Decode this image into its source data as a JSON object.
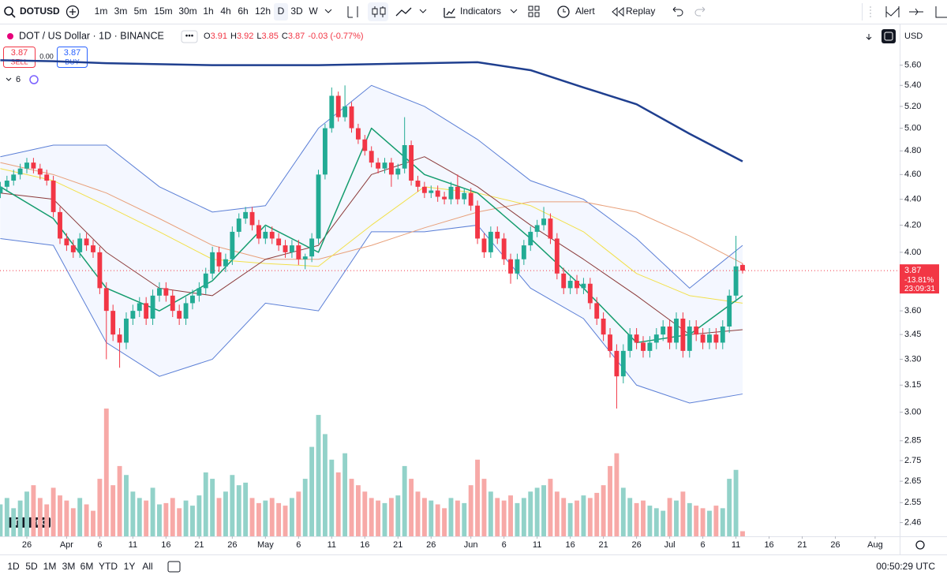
{
  "toolbar": {
    "symbol": "DOTUSD",
    "intervals": [
      "1m",
      "3m",
      "5m",
      "15m",
      "30m",
      "1h",
      "4h",
      "6h",
      "12h",
      "D",
      "3D",
      "W"
    ],
    "active_interval": "D",
    "indicators": "Indicators",
    "alert": "Alert",
    "replay": "Replay"
  },
  "legend": {
    "title": "DOT / US Dollar · 1D · BINANCE",
    "ohlc": [
      {
        "key": "O",
        "value": "3.91"
      },
      {
        "key": "H",
        "value": "3.92"
      },
      {
        "key": "L",
        "value": "3.85"
      },
      {
        "key": "C",
        "value": "3.87"
      }
    ],
    "change": "-0.03 (-0.77%)"
  },
  "trade": {
    "sell_price": "3.87",
    "sell": "SELL",
    "spread": "0.00",
    "buy_price": "3.87",
    "buy": "BUY"
  },
  "indicator_count": "6",
  "currency": "USD",
  "price_label": {
    "price": "3.87",
    "change": "-13.81%",
    "countdown": "23:09:31"
  },
  "logo": "PRO",
  "bottom": {
    "ranges": [
      "1D",
      "5D",
      "1M",
      "3M",
      "6M",
      "YTD",
      "1Y",
      "All"
    ],
    "clock": "00:50:29 UTC"
  },
  "chart_data": {
    "type": "candlestick",
    "log_scale": true,
    "ylim": [
      2.4,
      6.0
    ],
    "yticks": [
      {
        "value": 5.6,
        "label": "5.60"
      },
      {
        "value": 5.4,
        "label": "5.40"
      },
      {
        "value": 5.2,
        "label": "5.20"
      },
      {
        "value": 5,
        "label": "5.00"
      },
      {
        "value": 4.8,
        "label": "4.80"
      },
      {
        "value": 4.6,
        "label": "4.60"
      },
      {
        "value": 4.4,
        "label": "4.40"
      },
      {
        "value": 4.2,
        "label": "4.20"
      },
      {
        "value": 4,
        "label": "4.00"
      },
      {
        "value": 3.6,
        "label": "3.60"
      },
      3.45,
      {
        "value": 3.3,
        "label": "3.30"
      },
      3.15,
      {
        "value": 3,
        "label": "3.00"
      },
      2.85,
      2.75,
      2.65,
      2.55,
      2.46
    ],
    "xlim": [
      -0.05,
      135.7
    ],
    "xticks": [
      {
        "value": 4,
        "label": "26"
      },
      {
        "value": 10,
        "label": "Apr"
      },
      {
        "value": 15,
        "label": "6"
      },
      {
        "value": 20,
        "label": "11"
      },
      {
        "value": 25,
        "label": "16"
      },
      {
        "value": 30,
        "label": "21"
      },
      {
        "value": 35,
        "label": "26"
      },
      {
        "value": 40,
        "label": "May"
      },
      {
        "value": 45,
        "label": "6"
      },
      {
        "value": 50,
        "label": "11"
      },
      {
        "value": 55,
        "label": "16"
      },
      {
        "value": 60,
        "label": "21"
      },
      {
        "value": 65,
        "label": "26"
      },
      {
        "value": 71,
        "label": "Jun"
      },
      {
        "value": 76,
        "label": "6"
      },
      {
        "value": 81,
        "label": "11"
      },
      {
        "value": 86,
        "label": "16"
      },
      {
        "value": 91,
        "label": "21"
      },
      {
        "value": 96,
        "label": "26"
      },
      {
        "value": 101,
        "label": "Jul"
      },
      {
        "value": 106,
        "label": "6"
      },
      {
        "value": 111,
        "label": "11"
      },
      {
        "value": 116,
        "label": "16"
      },
      {
        "value": 121,
        "label": "21"
      },
      {
        "value": 126,
        "label": "26"
      },
      {
        "value": 132,
        "label": "Aug"
      }
    ],
    "up_color": "#22ab94",
    "down_color": "#f23645",
    "volume_up_color": "#92d2c9",
    "volume_down_color": "#f7a9a7",
    "candles": [
      [
        4.45,
        4.54,
        4.41,
        4.5
      ],
      [
        4.5,
        4.59,
        4.46,
        4.55
      ],
      [
        4.55,
        4.64,
        4.51,
        4.6
      ],
      [
        4.6,
        4.69,
        4.56,
        4.65
      ],
      [
        4.65,
        4.74,
        4.61,
        4.7
      ],
      [
        4.7,
        4.74,
        4.61,
        4.65
      ],
      [
        4.65,
        4.69,
        4.56,
        4.6
      ],
      [
        4.6,
        4.64,
        4.51,
        4.55
      ],
      [
        4.55,
        4.59,
        4.26,
        4.3
      ],
      [
        4.3,
        4.34,
        4.06,
        4.1
      ],
      [
        4.1,
        4.14,
        4.01,
        4.05
      ],
      [
        4.05,
        4.09,
        3.96,
        4.0
      ],
      [
        4.0,
        4.14,
        3.96,
        4.1
      ],
      [
        4.1,
        4.14,
        4.01,
        4.05
      ],
      [
        4.05,
        4.09,
        3.96,
        4.0
      ],
      [
        4.0,
        4.04,
        3.71,
        3.75
      ],
      [
        3.75,
        3.79,
        3.3,
        3.6
      ],
      [
        3.6,
        3.64,
        3.41,
        3.45
      ],
      [
        3.45,
        3.49,
        3.25,
        3.4
      ],
      [
        3.4,
        3.59,
        3.36,
        3.55
      ],
      [
        3.55,
        3.64,
        3.51,
        3.6
      ],
      [
        3.6,
        3.69,
        3.56,
        3.65
      ],
      [
        3.65,
        3.69,
        3.51,
        3.55
      ],
      [
        3.55,
        3.74,
        3.51,
        3.7
      ],
      [
        3.7,
        3.79,
        3.66,
        3.75
      ],
      [
        3.75,
        3.79,
        3.66,
        3.7
      ],
      [
        3.7,
        3.74,
        3.56,
        3.6
      ],
      [
        3.6,
        3.64,
        3.51,
        3.55
      ],
      [
        3.55,
        3.69,
        3.51,
        3.65
      ],
      [
        3.65,
        3.74,
        3.61,
        3.7
      ],
      [
        3.7,
        3.79,
        3.66,
        3.75
      ],
      [
        3.75,
        3.89,
        3.71,
        3.85
      ],
      [
        3.85,
        4.04,
        3.81,
        4.0
      ],
      [
        4.0,
        4.04,
        3.86,
        3.9
      ],
      [
        3.9,
        3.99,
        3.86,
        3.95
      ],
      [
        3.95,
        4.19,
        3.91,
        4.15
      ],
      [
        4.15,
        4.29,
        4.11,
        4.25
      ],
      [
        4.25,
        4.34,
        4.21,
        4.3
      ],
      [
        4.3,
        4.34,
        4.16,
        4.2
      ],
      [
        4.2,
        4.24,
        4.06,
        4.1
      ],
      [
        4.1,
        4.19,
        4.06,
        4.15
      ],
      [
        4.15,
        4.19,
        4.06,
        4.1
      ],
      [
        4.1,
        4.14,
        4.01,
        4.05
      ],
      [
        4.05,
        4.09,
        3.96,
        4.0
      ],
      [
        4.0,
        4.09,
        3.96,
        4.05
      ],
      [
        4.05,
        4.09,
        3.91,
        3.95
      ],
      [
        3.95,
        3.99,
        3.88,
        3.97
      ],
      [
        3.97,
        4.14,
        3.93,
        4.1
      ],
      [
        4.1,
        4.64,
        4.06,
        4.6
      ],
      [
        4.6,
        5.04,
        4.56,
        5.0
      ],
      [
        5.0,
        5.38,
        4.96,
        5.3
      ],
      [
        5.3,
        5.34,
        5.06,
        5.1
      ],
      [
        5.1,
        5.4,
        5.06,
        5.2
      ],
      [
        5.2,
        5.24,
        4.96,
        5.0
      ],
      [
        5.0,
        5.04,
        4.86,
        4.9
      ],
      [
        4.9,
        4.94,
        4.76,
        4.8
      ],
      [
        4.8,
        4.84,
        4.66,
        4.7
      ],
      [
        4.7,
        4.74,
        4.61,
        4.65
      ],
      [
        4.65,
        4.74,
        4.61,
        4.7
      ],
      [
        4.7,
        4.74,
        4.5,
        4.6
      ],
      [
        4.6,
        4.69,
        4.56,
        4.65
      ],
      [
        4.65,
        5.1,
        4.61,
        4.85
      ],
      [
        4.85,
        4.89,
        4.51,
        4.55
      ],
      [
        4.55,
        4.59,
        4.46,
        4.5
      ],
      [
        4.5,
        4.54,
        4.41,
        4.45
      ],
      [
        4.45,
        4.51,
        4.41,
        4.47
      ],
      [
        4.47,
        4.51,
        4.38,
        4.42
      ],
      [
        4.42,
        4.46,
        4.36,
        4.4
      ],
      [
        4.4,
        4.54,
        4.36,
        4.5
      ],
      [
        4.5,
        4.6,
        4.36,
        4.4
      ],
      [
        4.4,
        4.49,
        4.36,
        4.45
      ],
      [
        4.45,
        4.49,
        4.31,
        4.35
      ],
      [
        4.35,
        4.39,
        4.06,
        4.1
      ],
      [
        4.1,
        4.14,
        3.96,
        4.0
      ],
      [
        4.0,
        4.19,
        3.96,
        4.15
      ],
      [
        4.15,
        4.19,
        4.06,
        4.1
      ],
      [
        4.1,
        4.14,
        3.91,
        3.95
      ],
      [
        3.95,
        3.99,
        3.78,
        3.85
      ],
      [
        3.85,
        3.99,
        3.81,
        3.95
      ],
      [
        3.95,
        4.09,
        3.91,
        4.05
      ],
      [
        4.05,
        4.19,
        4.01,
        4.15
      ],
      [
        4.15,
        4.24,
        4.11,
        4.2
      ],
      [
        4.2,
        4.34,
        4.16,
        4.25
      ],
      [
        4.25,
        4.29,
        4.06,
        4.1
      ],
      [
        4.1,
        4.14,
        3.81,
        3.85
      ],
      [
        3.85,
        3.89,
        3.71,
        3.75
      ],
      [
        3.75,
        3.84,
        3.71,
        3.8
      ],
      [
        3.8,
        3.84,
        3.71,
        3.75
      ],
      [
        3.75,
        3.82,
        3.71,
        3.78
      ],
      [
        3.78,
        3.82,
        3.61,
        3.65
      ],
      [
        3.65,
        3.69,
        3.51,
        3.55
      ],
      [
        3.55,
        3.59,
        3.41,
        3.45
      ],
      [
        3.45,
        3.49,
        3.31,
        3.35
      ],
      [
        3.35,
        3.39,
        3.02,
        3.2
      ],
      [
        3.2,
        3.39,
        3.16,
        3.35
      ],
      [
        3.35,
        3.49,
        3.31,
        3.45
      ],
      [
        3.45,
        3.49,
        3.36,
        3.4
      ],
      [
        3.4,
        3.44,
        3.31,
        3.35
      ],
      [
        3.35,
        3.44,
        3.31,
        3.4
      ],
      [
        3.4,
        3.49,
        3.36,
        3.45
      ],
      [
        3.45,
        3.54,
        3.41,
        3.5
      ],
      [
        3.5,
        3.54,
        3.36,
        3.4
      ],
      [
        3.4,
        3.59,
        3.36,
        3.55
      ],
      [
        3.55,
        3.59,
        3.31,
        3.35
      ],
      [
        3.35,
        3.54,
        3.31,
        3.5
      ],
      [
        3.5,
        3.54,
        3.41,
        3.45
      ],
      [
        3.45,
        3.49,
        3.36,
        3.4
      ],
      [
        3.4,
        3.49,
        3.36,
        3.45
      ],
      [
        3.45,
        3.49,
        3.36,
        3.4
      ],
      [
        3.4,
        3.54,
        3.36,
        3.5
      ],
      [
        3.5,
        3.74,
        3.46,
        3.7
      ],
      [
        3.7,
        4.12,
        3.66,
        3.9
      ],
      [
        3.91,
        3.92,
        3.85,
        3.87
      ]
    ],
    "volume": [
      25,
      30,
      22,
      28,
      35,
      40,
      30,
      25,
      38,
      32,
      28,
      22,
      30,
      25,
      20,
      45,
      100,
      40,
      55,
      48,
      35,
      30,
      28,
      38,
      25,
      26,
      30,
      22,
      28,
      24,
      32,
      50,
      45,
      30,
      35,
      48,
      40,
      42,
      30,
      26,
      28,
      30,
      26,
      24,
      30,
      35,
      45,
      70,
      95,
      80,
      60,
      50,
      65,
      45,
      40,
      35,
      30,
      28,
      26,
      30,
      32,
      55,
      45,
      35,
      30,
      28,
      25,
      22,
      30,
      28,
      26,
      40,
      60,
      45,
      35,
      30,
      28,
      32,
      26,
      30,
      35,
      38,
      40,
      45,
      35,
      30,
      26,
      28,
      32,
      30,
      34,
      40,
      55,
      65,
      38,
      30,
      26,
      28,
      24,
      22,
      20,
      30,
      28,
      35,
      26,
      24,
      22,
      20,
      24,
      22,
      45,
      52,
      4
    ],
    "volume_lim": [
      0,
      100
    ],
    "band": {
      "color": "#5b7fd6",
      "x": [
        0,
        8,
        16,
        24,
        32,
        40,
        48,
        56,
        64,
        72,
        80,
        88,
        96,
        104,
        112
      ],
      "upper": [
        4.75,
        4.85,
        4.85,
        4.5,
        4.3,
        4.35,
        5.0,
        5.4,
        5.2,
        4.9,
        4.55,
        4.4,
        4.1,
        3.75,
        4.05
      ],
      "lower": [
        4.1,
        4.05,
        3.4,
        3.2,
        3.3,
        3.65,
        3.6,
        4.15,
        4.15,
        4.2,
        3.75,
        3.55,
        3.15,
        3.05,
        3.1
      ]
    },
    "lines": [
      {
        "color": "#1f3f8f",
        "width": 2.5,
        "x": [
          0,
          8,
          16,
          24,
          32,
          40,
          48,
          56,
          64,
          72,
          80,
          88,
          96,
          104,
          112
        ],
        "values": [
          5.65,
          5.64,
          5.62,
          5.61,
          5.6,
          5.6,
          5.6,
          5.61,
          5.62,
          5.63,
          5.55,
          5.38,
          5.22,
          4.95,
          4.71
        ]
      },
      {
        "color": "#e8a07a",
        "width": 1,
        "x": [
          0,
          8,
          16,
          24,
          32,
          40,
          48,
          56,
          64,
          72,
          80,
          88,
          96,
          104,
          112
        ],
        "values": [
          4.7,
          4.6,
          4.45,
          4.25,
          4.05,
          3.95,
          3.95,
          4.05,
          4.18,
          4.3,
          4.38,
          4.38,
          4.3,
          4.12,
          3.92
        ]
      },
      {
        "color": "#f2e04a",
        "width": 1,
        "x": [
          0,
          8,
          16,
          24,
          32,
          40,
          48,
          56,
          64,
          72,
          80,
          88,
          96,
          104,
          112
        ],
        "values": [
          4.65,
          4.55,
          4.35,
          4.15,
          3.95,
          3.92,
          3.9,
          4.2,
          4.5,
          4.45,
          4.35,
          4.15,
          3.85,
          3.7,
          3.65
        ]
      },
      {
        "color": "#8b3a3a",
        "width": 1,
        "x": [
          0,
          8,
          16,
          24,
          32,
          40,
          48,
          56,
          64,
          72,
          80,
          88,
          96,
          104,
          112
        ],
        "values": [
          4.45,
          4.4,
          4.0,
          3.75,
          3.7,
          3.95,
          4.05,
          4.6,
          4.75,
          4.5,
          4.2,
          3.95,
          3.7,
          3.45,
          3.48
        ]
      },
      {
        "color": "#149c6e",
        "width": 1.5,
        "x": [
          0,
          8,
          16,
          24,
          32,
          40,
          48,
          56,
          64,
          72,
          80,
          88,
          96,
          104,
          112
        ],
        "values": [
          4.5,
          4.25,
          3.75,
          3.6,
          3.8,
          4.2,
          4.0,
          5.0,
          4.6,
          4.45,
          4.1,
          3.75,
          3.4,
          3.45,
          3.7
        ]
      }
    ],
    "last_price": 3.87
  }
}
